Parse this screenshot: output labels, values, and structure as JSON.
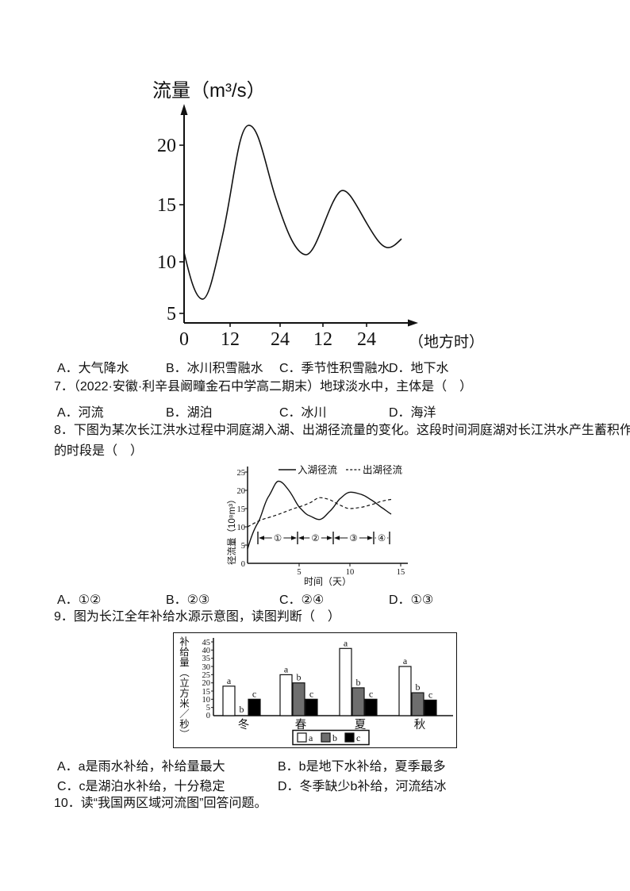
{
  "q6_options": {
    "a": "A．大气降水",
    "b": "B．冰川积雪融水",
    "c": "C．季节性积雪融水",
    "d": "D．地下水"
  },
  "q7": {
    "stem": "7．（2022·安徽·利辛县阚疃金石中学高二期末）地球淡水中，主体是（　）",
    "options": {
      "a": "A．河流",
      "b": "B．湖泊",
      "c": "C．冰川",
      "d": "D．海洋"
    }
  },
  "q8": {
    "stem_line1": "8．下图为某次长江洪水过程中洞庭湖入湖、出湖径流量的变化。这段时间洞庭湖对长江洪水产生蓄积作用",
    "stem_line2": "的时段是（　）",
    "options": {
      "a": "A．①②",
      "b": "B．②③",
      "c": "C．②④",
      "d": "D．①③"
    }
  },
  "q9": {
    "stem": "9．图为长江全年补给水源示意图，读图判断（　）",
    "options": {
      "a": "A．a是雨水补给，补给量最大",
      "b": "B．b是地下水补给，夏季最多",
      "c": "C．c是湖泊水补给，十分稳定",
      "d": "D．冬季缺少b补给，河流结冰"
    }
  },
  "q10": {
    "stem": "10．读“我国两区域河流图”回答问题。"
  },
  "chart_data": [
    {
      "type": "line",
      "title": "流量（m³/s）",
      "xlabel": "（地方时）",
      "yticks": [
        "20",
        "15",
        "10",
        "5"
      ],
      "xticks": [
        "0",
        "12",
        "24",
        "12",
        "24"
      ],
      "ylim": [
        5,
        22.5
      ],
      "series": [
        {
          "name": "流量",
          "x_hours": [
            0,
            2,
            4,
            8,
            12,
            16,
            20,
            24,
            28,
            31,
            34,
            38,
            41,
            44,
            48,
            51,
            53
          ],
          "values": [
            10.7,
            8.0,
            6.3,
            9.5,
            17.5,
            21.7,
            20.5,
            16.0,
            11.8,
            10.7,
            12.0,
            15.5,
            16.2,
            15.2,
            12.2,
            11.2,
            11.9
          ]
        }
      ]
    },
    {
      "type": "line",
      "ylabel": "径流量（10⁸m³）",
      "xlabel": "时间（天）",
      "yticks": [
        "25",
        "20",
        "15",
        "10",
        "5",
        "0"
      ],
      "xticks": [
        "5",
        "10",
        "15"
      ],
      "ylim": [
        0,
        25
      ],
      "xlim": [
        0,
        15
      ],
      "series": [
        {
          "name": "入湖径流",
          "style": "solid",
          "x": [
            0,
            1,
            2,
            3,
            4,
            5,
            6,
            7,
            8,
            9,
            10,
            11,
            12,
            13,
            14
          ],
          "values": [
            4,
            11,
            18,
            22.5,
            20,
            15.5,
            13,
            12,
            14,
            17.5,
            19.5,
            19,
            17.5,
            15.5,
            13.5
          ]
        },
        {
          "name": "出湖径流",
          "style": "dashed",
          "x": [
            0,
            1,
            2,
            3,
            4,
            5,
            6,
            7,
            8,
            9,
            10,
            11,
            12,
            13,
            14
          ],
          "values": [
            10,
            11.5,
            12.5,
            13.5,
            14.5,
            15.5,
            16.5,
            18,
            17.5,
            16,
            15,
            15.3,
            16,
            17,
            17.5
          ]
        }
      ],
      "segments": {
        "labels": [
          "①",
          "②",
          "③",
          "④"
        ],
        "boundaries_days": [
          1,
          4.9,
          8.3,
          12.3,
          13.9
        ]
      }
    },
    {
      "type": "bar",
      "ylabel": "补给量（立方米／秒）",
      "categories": [
        "冬",
        "春",
        "夏",
        "秋"
      ],
      "yticks": [
        "45",
        "40",
        "35",
        "30",
        "25",
        "20",
        "15",
        "10",
        "5",
        "0"
      ],
      "ylim": [
        0,
        45
      ],
      "series": [
        {
          "name": "a",
          "fill": "#ffffff",
          "values": [
            18,
            25,
            41,
            30
          ]
        },
        {
          "name": "b",
          "fill": "#6e6e6e",
          "values": [
            0,
            20,
            17,
            14
          ]
        },
        {
          "name": "c",
          "fill": "#000000",
          "values": [
            10,
            10,
            10,
            9.5
          ]
        }
      ],
      "legend": [
        "a",
        "b",
        "c"
      ]
    }
  ]
}
